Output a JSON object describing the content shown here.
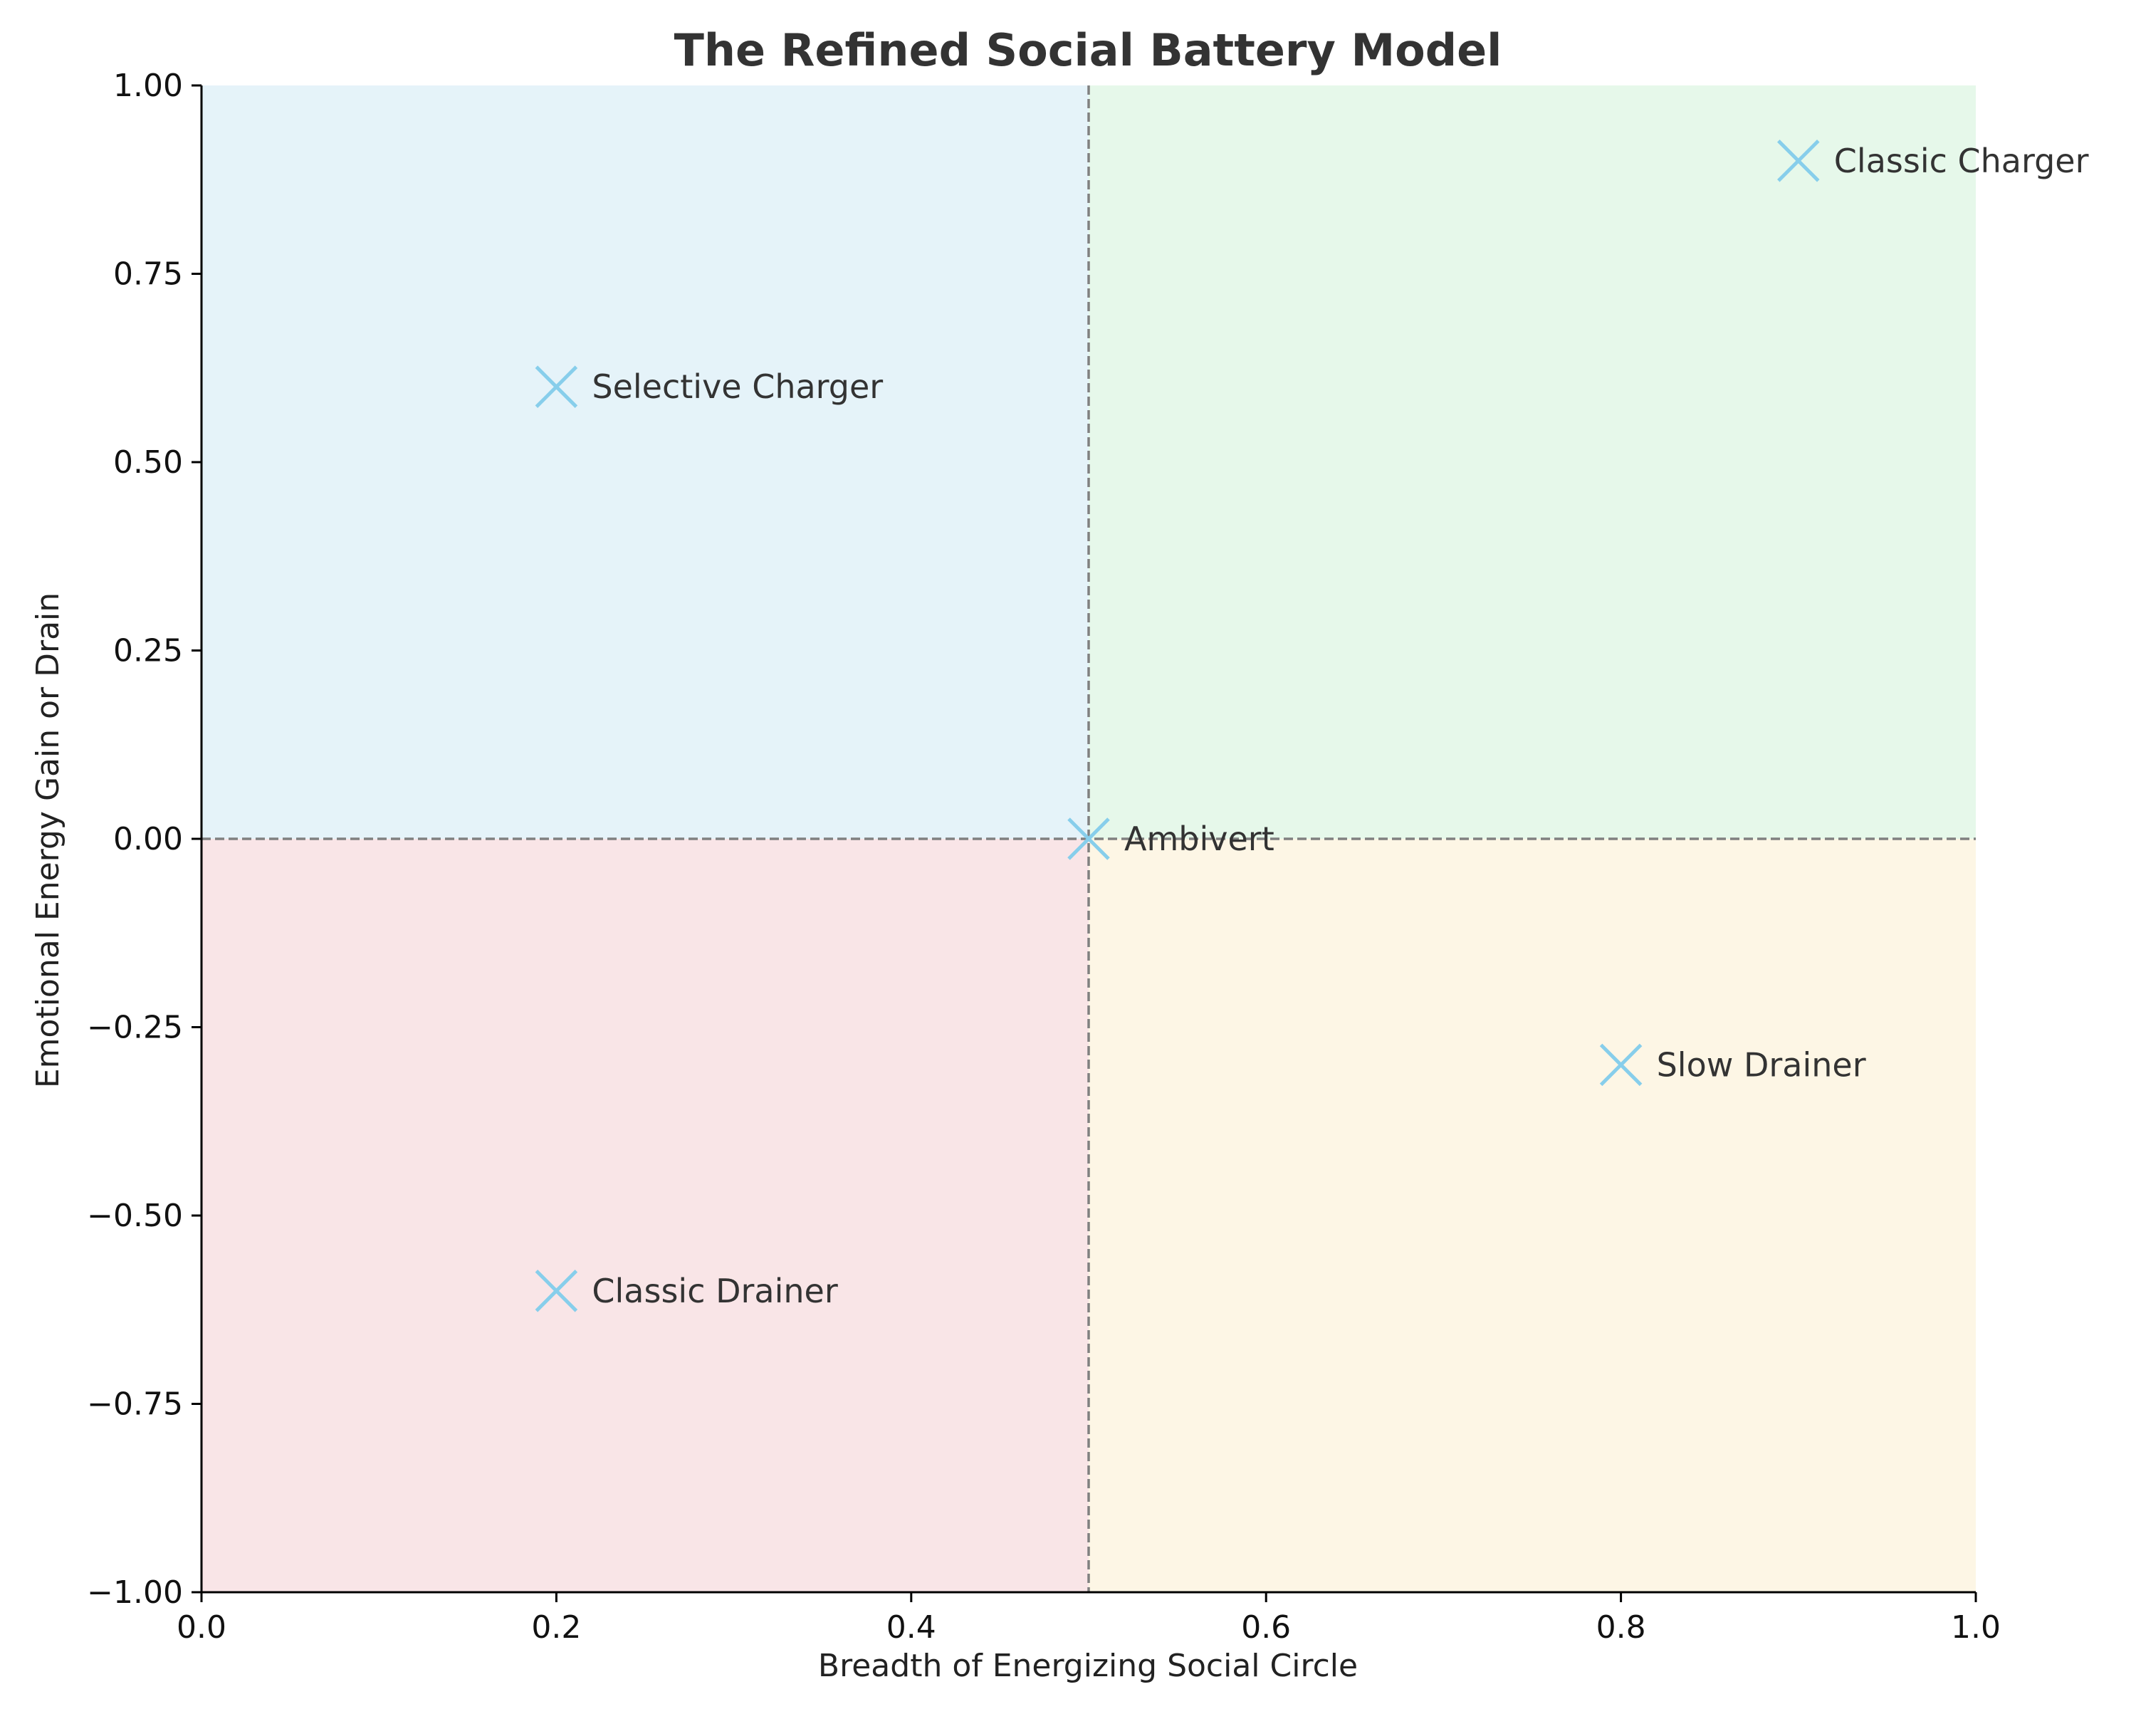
{
  "chart_data": {
    "type": "scatter",
    "title": "The Refined Social Battery Model",
    "xlabel": "Breadth of Energizing Social Circle",
    "ylabel": "Emotional Energy Gain or Drain",
    "xlim": [
      0.0,
      1.0
    ],
    "ylim": [
      -1.0,
      1.0
    ],
    "x_ticks": [
      0.0,
      0.2,
      0.4,
      0.6,
      0.8,
      1.0
    ],
    "x_tick_labels": [
      "0.0",
      "0.2",
      "0.4",
      "0.6",
      "0.8",
      "1.0"
    ],
    "y_ticks": [
      -1.0,
      -0.75,
      -0.5,
      -0.25,
      0.0,
      0.25,
      0.5,
      0.75,
      1.0
    ],
    "y_tick_labels": [
      "−1.00",
      "−0.75",
      "−0.50",
      "−0.25",
      "0.00",
      "0.25",
      "0.50",
      "0.75",
      "1.00"
    ],
    "grid": false,
    "reference_lines": {
      "x": 0.5,
      "y": 0.0,
      "style": "dashed",
      "color": "#808080"
    },
    "quadrants": [
      {
        "x_range": [
          0.0,
          0.5
        ],
        "y_range": [
          0.0,
          1.0
        ],
        "color": "#e5f3f9"
      },
      {
        "x_range": [
          0.5,
          1.0
        ],
        "y_range": [
          0.0,
          1.0
        ],
        "color": "#e6f8ea"
      },
      {
        "x_range": [
          0.0,
          0.5
        ],
        "y_range": [
          -1.0,
          0.0
        ],
        "color": "#f9e5e7"
      },
      {
        "x_range": [
          0.5,
          1.0
        ],
        "y_range": [
          -1.0,
          0.0
        ],
        "color": "#fdf6e5"
      }
    ],
    "marker": "x",
    "marker_color": "#87ceeb",
    "points": [
      {
        "label": "Classic Charger",
        "x": 0.9,
        "y": 0.9
      },
      {
        "label": "Selective Charger",
        "x": 0.2,
        "y": 0.6
      },
      {
        "label": "Ambivert",
        "x": 0.5,
        "y": 0.0
      },
      {
        "label": "Slow Drainer",
        "x": 0.8,
        "y": -0.3
      },
      {
        "label": "Classic Drainer",
        "x": 0.2,
        "y": -0.6
      }
    ]
  }
}
